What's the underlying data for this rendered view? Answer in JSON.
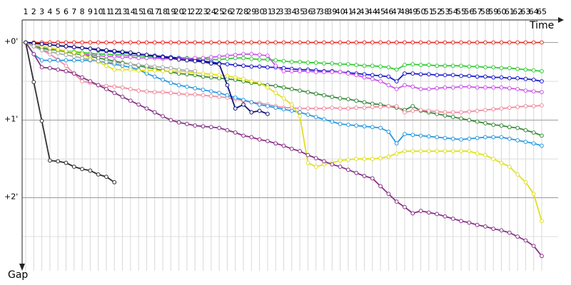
{
  "chart_data": {
    "type": "line",
    "x_label": "Time",
    "y_label": "Gap",
    "x": [
      1,
      2,
      3,
      4,
      5,
      6,
      7,
      8,
      9,
      10,
      11,
      12,
      13,
      14,
      15,
      16,
      17,
      18,
      19,
      20,
      21,
      22,
      23,
      24,
      25,
      26,
      27,
      28,
      29,
      30,
      31,
      32,
      33,
      34,
      35,
      36,
      37,
      38,
      39,
      40,
      41,
      42,
      43,
      44,
      45,
      46,
      47,
      48,
      49,
      50,
      51,
      52,
      53,
      54,
      55,
      56,
      57,
      58,
      59,
      60,
      61,
      62,
      63,
      64,
      65
    ],
    "xlim": [
      1,
      65
    ],
    "xticks": [
      1,
      2,
      3,
      4,
      5,
      6,
      7,
      8,
      9,
      10,
      11,
      12,
      13,
      14,
      15,
      16,
      17,
      18,
      19,
      20,
      21,
      22,
      23,
      24,
      25,
      26,
      27,
      28,
      29,
      30,
      31,
      32,
      33,
      34,
      35,
      36,
      37,
      38,
      39,
      40,
      41,
      42,
      43,
      44,
      45,
      46,
      47,
      48,
      49,
      50,
      51,
      52,
      53,
      54,
      55,
      56,
      57,
      58,
      59,
      60,
      61,
      62,
      63,
      64,
      65
    ],
    "ylim": [
      -0.29,
      2.94
    ],
    "y_inverted": true,
    "yticks": [
      {
        "value": 0,
        "label": "+0'"
      },
      {
        "value": 1,
        "label": "+1'"
      },
      {
        "value": 2,
        "label": "+2'"
      }
    ],
    "minor_yticks": [
      0.5,
      1.5,
      2.5
    ],
    "grid": true,
    "series": [
      {
        "color": "#e8302a",
        "values": [
          0,
          0,
          0,
          0,
          0,
          0,
          0,
          0,
          0,
          0,
          0,
          0,
          0,
          0,
          0,
          0,
          0,
          0,
          0,
          0,
          0,
          0,
          0,
          0,
          0,
          0,
          0,
          0,
          0,
          0,
          0,
          0,
          0,
          0,
          0,
          0,
          0,
          0,
          0,
          0,
          0,
          0,
          0,
          0,
          0,
          0,
          0,
          0,
          0,
          0,
          0,
          0,
          0,
          0,
          0,
          0,
          0,
          0,
          0,
          0,
          0,
          0,
          0,
          0,
          0
        ]
      },
      {
        "color": "#33cc33",
        "values": [
          0,
          0.05,
          0.08,
          0.09,
          0.1,
          0.11,
          0.12,
          0.13,
          0.14,
          0.15,
          0.15,
          0.16,
          0.16,
          0.17,
          0.17,
          0.18,
          0.18,
          0.19,
          0.19,
          0.2,
          0.2,
          0.21,
          0.21,
          0.22,
          0.22,
          0.21,
          0.2,
          0.2,
          0.21,
          0.22,
          0.22,
          0.23,
          0.24,
          0.25,
          0.25,
          0.26,
          0.26,
          0.27,
          0.27,
          0.28,
          0.28,
          0.29,
          0.3,
          0.3,
          0.31,
          0.32,
          0.35,
          0.29,
          0.28,
          0.29,
          0.29,
          0.3,
          0.3,
          0.3,
          0.3,
          0.31,
          0.31,
          0.32,
          0.32,
          0.33,
          0.33,
          0.34,
          0.35,
          0.36,
          0.37
        ]
      },
      {
        "color": "#1a1acc",
        "values": [
          0,
          0.01,
          0.02,
          0.03,
          0.04,
          0.05,
          0.06,
          0.07,
          0.08,
          0.1,
          0.11,
          0.12,
          0.13,
          0.14,
          0.15,
          0.16,
          0.17,
          0.18,
          0.19,
          0.2,
          0.21,
          0.22,
          0.24,
          0.25,
          0.27,
          0.28,
          0.29,
          0.3,
          0.31,
          0.31,
          0.32,
          0.32,
          0.33,
          0.34,
          0.35,
          0.35,
          0.36,
          0.37,
          0.37,
          0.38,
          0.39,
          0.4,
          0.41,
          0.42,
          0.43,
          0.44,
          0.5,
          0.4,
          0.4,
          0.41,
          0.41,
          0.42,
          0.42,
          0.42,
          0.43,
          0.43,
          0.44,
          0.44,
          0.45,
          0.45,
          0.46,
          0.46,
          0.47,
          0.48,
          0.5
        ]
      },
      {
        "color": "#cc55ee",
        "values": [
          0,
          0.03,
          0.05,
          0.07,
          0.09,
          0.11,
          0.13,
          0.15,
          0.16,
          0.17,
          0.18,
          0.18,
          0.19,
          0.19,
          0.2,
          0.2,
          0.2,
          0.21,
          0.21,
          0.21,
          0.21,
          0.2,
          0.2,
          0.19,
          0.18,
          0.17,
          0.16,
          0.15,
          0.15,
          0.16,
          0.17,
          0.3,
          0.37,
          0.37,
          0.37,
          0.37,
          0.38,
          0.38,
          0.38,
          0.38,
          0.4,
          0.42,
          0.45,
          0.47,
          0.5,
          0.55,
          0.6,
          0.55,
          0.57,
          0.6,
          0.6,
          0.59,
          0.58,
          0.58,
          0.57,
          0.57,
          0.58,
          0.58,
          0.58,
          0.58,
          0.59,
          0.6,
          0.62,
          0.63,
          0.64
        ]
      },
      {
        "color": "#3a8a3a",
        "values": [
          0,
          0.05,
          0.07,
          0.09,
          0.1,
          0.12,
          0.14,
          0.16,
          0.18,
          0.2,
          0.22,
          0.24,
          0.26,
          0.28,
          0.3,
          0.32,
          0.34,
          0.36,
          0.38,
          0.4,
          0.41,
          0.42,
          0.44,
          0.45,
          0.46,
          0.47,
          0.48,
          0.5,
          0.52,
          0.53,
          0.55,
          0.56,
          0.58,
          0.6,
          0.62,
          0.64,
          0.66,
          0.68,
          0.7,
          0.72,
          0.73,
          0.75,
          0.77,
          0.79,
          0.8,
          0.82,
          0.84,
          0.87,
          0.82,
          0.88,
          0.9,
          0.92,
          0.94,
          0.96,
          0.98,
          1.0,
          1.02,
          1.04,
          1.06,
          1.07,
          1.09,
          1.1,
          1.13,
          1.16,
          1.2
        ]
      },
      {
        "color": "#f08ca0",
        "values": [
          0,
          0.05,
          0.1,
          0.15,
          0.22,
          0.3,
          0.4,
          0.5,
          0.52,
          0.55,
          0.56,
          0.57,
          0.58,
          0.6,
          0.62,
          0.63,
          0.64,
          0.64,
          0.65,
          0.66,
          0.67,
          0.67,
          0.68,
          0.69,
          0.7,
          0.71,
          0.73,
          0.75,
          0.77,
          0.78,
          0.8,
          0.82,
          0.84,
          0.84,
          0.85,
          0.85,
          0.85,
          0.85,
          0.84,
          0.85,
          0.85,
          0.84,
          0.84,
          0.83,
          0.83,
          0.82,
          0.82,
          0.9,
          0.88,
          0.87,
          0.88,
          0.89,
          0.9,
          0.9,
          0.9,
          0.89,
          0.88,
          0.87,
          0.86,
          0.85,
          0.84,
          0.83,
          0.82,
          0.82,
          0.81
        ]
      },
      {
        "color": "#2a9ae0",
        "values": [
          0,
          0.15,
          0.23,
          0.23,
          0.23,
          0.23,
          0.23,
          0.23,
          0.23,
          0.24,
          0.26,
          0.28,
          0.3,
          0.32,
          0.35,
          0.4,
          0.44,
          0.48,
          0.52,
          0.55,
          0.57,
          0.59,
          0.61,
          0.63,
          0.65,
          0.68,
          0.71,
          0.74,
          0.77,
          0.8,
          0.82,
          0.84,
          0.86,
          0.88,
          0.9,
          0.93,
          0.96,
          0.99,
          1.02,
          1.05,
          1.06,
          1.07,
          1.08,
          1.09,
          1.1,
          1.15,
          1.3,
          1.18,
          1.19,
          1.2,
          1.21,
          1.22,
          1.23,
          1.24,
          1.25,
          1.24,
          1.23,
          1.22,
          1.22,
          1.22,
          1.24,
          1.26,
          1.28,
          1.3,
          1.33
        ]
      },
      {
        "color": "#e0e020",
        "values": [
          0,
          0.03,
          0.05,
          0.07,
          0.09,
          0.11,
          0.13,
          0.15,
          0.2,
          0.25,
          0.3,
          0.35,
          0.35,
          0.35,
          0.36,
          0.36,
          0.36,
          0.37,
          0.37,
          0.37,
          0.38,
          0.39,
          0.4,
          0.41,
          0.42,
          0.43,
          0.45,
          0.47,
          0.5,
          0.52,
          0.58,
          0.65,
          0.72,
          0.8,
          0.95,
          1.55,
          1.6,
          1.57,
          1.55,
          1.52,
          1.51,
          1.5,
          1.5,
          1.5,
          1.49,
          1.47,
          1.43,
          1.4,
          1.4,
          1.4,
          1.4,
          1.4,
          1.4,
          1.4,
          1.4,
          1.4,
          1.43,
          1.45,
          1.5,
          1.55,
          1.6,
          1.7,
          1.8,
          1.95,
          2.3
        ]
      },
      {
        "color": "#883388",
        "values": [
          0,
          0.15,
          0.32,
          0.33,
          0.35,
          0.37,
          0.4,
          0.45,
          0.5,
          0.55,
          0.6,
          0.65,
          0.7,
          0.75,
          0.8,
          0.85,
          0.9,
          0.95,
          1.0,
          1.03,
          1.05,
          1.07,
          1.08,
          1.09,
          1.1,
          1.13,
          1.16,
          1.2,
          1.22,
          1.25,
          1.27,
          1.3,
          1.33,
          1.37,
          1.4,
          1.45,
          1.49,
          1.53,
          1.57,
          1.6,
          1.64,
          1.68,
          1.72,
          1.75,
          1.85,
          1.95,
          2.05,
          2.12,
          2.2,
          2.17,
          2.19,
          2.21,
          2.24,
          2.27,
          2.3,
          2.32,
          2.35,
          2.37,
          2.4,
          2.42,
          2.45,
          2.5,
          2.55,
          2.62,
          2.75
        ]
      },
      {
        "color": "#101080",
        "values": [
          0,
          0.01,
          0.02,
          0.03,
          0.04,
          0.05,
          0.06,
          0.07,
          0.08,
          0.09,
          0.1,
          0.11,
          0.12,
          0.13,
          0.15,
          0.16,
          0.18,
          0.19,
          0.2,
          0.22,
          0.23,
          0.24,
          0.25,
          0.27,
          0.28,
          0.55,
          0.85,
          0.8,
          0.9,
          0.88,
          0.92,
          null,
          null,
          null,
          null,
          null,
          null,
          null,
          null,
          null,
          null,
          null,
          null,
          null,
          null,
          null,
          null,
          null,
          null,
          null,
          null,
          null,
          null,
          null,
          null,
          null,
          null,
          null,
          null,
          null,
          null,
          null,
          null,
          null,
          null
        ]
      },
      {
        "color": "#aaaaaa",
        "values": [
          0,
          0.05,
          0.1,
          0.12,
          0.14,
          0.16,
          0.18,
          0.2,
          0.22,
          0.24,
          0.25,
          0.26,
          0.27,
          0.28,
          0.29,
          0.3,
          0.31,
          0.32,
          0.33,
          0.35,
          0.36,
          0.37,
          null,
          null,
          null,
          null,
          null,
          null,
          null,
          null,
          null,
          null,
          null,
          null,
          null,
          null,
          null,
          null,
          null,
          null,
          null,
          null,
          null,
          null,
          null,
          null,
          null,
          null,
          null,
          null,
          null,
          null,
          null,
          null,
          null,
          null,
          null,
          null,
          null,
          null,
          null,
          null,
          null,
          null,
          null
        ]
      },
      {
        "color": "#303030",
        "values": [
          0,
          0.51,
          1.01,
          1.52,
          1.53,
          1.55,
          1.6,
          1.63,
          1.65,
          1.7,
          1.73,
          1.8,
          null,
          null,
          null,
          null,
          null,
          null,
          null,
          null,
          null,
          null,
          null,
          null,
          null,
          null,
          null,
          null,
          null,
          null,
          null,
          null,
          null,
          null,
          null,
          null,
          null,
          null,
          null,
          null,
          null,
          null,
          null,
          null,
          null,
          null,
          null,
          null,
          null,
          null,
          null,
          null,
          null,
          null,
          null,
          null,
          null,
          null,
          null,
          null,
          null,
          null,
          null,
          null,
          null
        ]
      }
    ]
  }
}
